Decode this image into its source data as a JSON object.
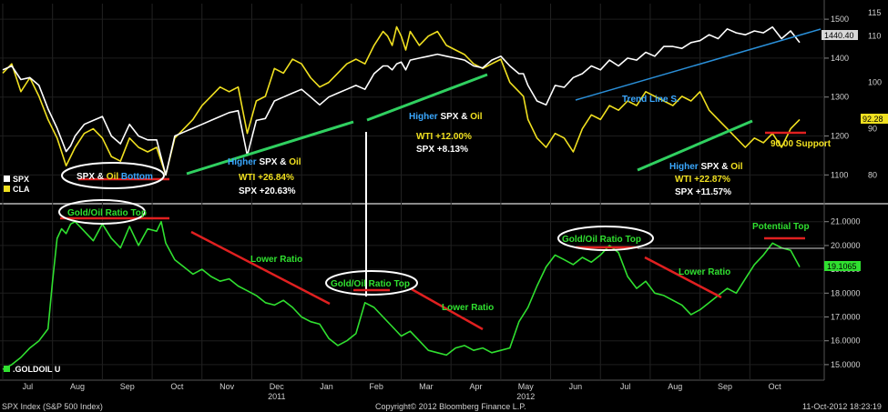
{
  "chart_data": [
    {
      "type": "line",
      "panel": "top",
      "title": "",
      "legend": [
        {
          "label": "SPX",
          "color": "#ffffff"
        },
        {
          "label": "CLA",
          "color": "#f0e020"
        }
      ],
      "left_axis": {
        "ticks": [
          "80",
          "90",
          "100",
          "110",
          "115"
        ],
        "range": [
          75,
          117
        ]
      },
      "right_axis": {
        "ticks": [
          "1100",
          "1200",
          "1300",
          "1400",
          "1500"
        ],
        "range": [
          1040,
          1540
        ]
      },
      "last_values": {
        "spx": "1440.40",
        "cla": "92.28"
      },
      "series": [
        {
          "name": "SPX",
          "color": "#ffffff",
          "axis": "right",
          "x": [
            0,
            10,
            20,
            30,
            40,
            50,
            60,
            70,
            75,
            80,
            90,
            100,
            110,
            120,
            130,
            140,
            150,
            160,
            170,
            180,
            190,
            200,
            210,
            220,
            230,
            240,
            250,
            260,
            270,
            280,
            290,
            300,
            310,
            320,
            330,
            340,
            350,
            360,
            370,
            380,
            390,
            400,
            410,
            420,
            425,
            430,
            435,
            440,
            445,
            450,
            460,
            470,
            480,
            490,
            500,
            510,
            520,
            530,
            540,
            550,
            560,
            570,
            575,
            580,
            590,
            600,
            610,
            620,
            630,
            640,
            650,
            660,
            670,
            680,
            690,
            700,
            710,
            720,
            730,
            740,
            750,
            760,
            770,
            780,
            790,
            800,
            810,
            820,
            830,
            840,
            850,
            860,
            870,
            880
          ],
          "values": [
            1370,
            1380,
            1345,
            1350,
            1330,
            1270,
            1220,
            1160,
            1175,
            1200,
            1230,
            1240,
            1250,
            1200,
            1180,
            1230,
            1200,
            1190,
            1190,
            1100,
            1200,
            1210,
            1220,
            1230,
            1240,
            1250,
            1260,
            1265,
            1150,
            1240,
            1245,
            1290,
            1300,
            1310,
            1320,
            1300,
            1280,
            1300,
            1310,
            1320,
            1330,
            1320,
            1360,
            1380,
            1380,
            1370,
            1385,
            1390,
            1370,
            1395,
            1400,
            1405,
            1410,
            1405,
            1400,
            1395,
            1380,
            1375,
            1395,
            1405,
            1380,
            1360,
            1360,
            1330,
            1290,
            1280,
            1330,
            1325,
            1350,
            1360,
            1380,
            1370,
            1395,
            1380,
            1400,
            1395,
            1415,
            1405,
            1430,
            1430,
            1425,
            1440,
            1445,
            1460,
            1450,
            1475,
            1465,
            1460,
            1470,
            1465,
            1480,
            1450,
            1470,
            1440
          ]
        },
        {
          "name": "CLA",
          "color": "#f0e020",
          "axis": "left",
          "x": [
            0,
            10,
            20,
            30,
            40,
            50,
            60,
            70,
            75,
            80,
            90,
            100,
            110,
            120,
            130,
            140,
            150,
            160,
            170,
            180,
            190,
            200,
            210,
            220,
            230,
            240,
            250,
            260,
            270,
            280,
            290,
            300,
            310,
            320,
            330,
            340,
            350,
            360,
            370,
            380,
            390,
            400,
            410,
            420,
            425,
            430,
            435,
            440,
            445,
            450,
            460,
            470,
            480,
            490,
            500,
            510,
            520,
            530,
            540,
            550,
            560,
            570,
            575,
            580,
            590,
            600,
            610,
            620,
            630,
            640,
            650,
            660,
            670,
            680,
            690,
            700,
            710,
            720,
            730,
            740,
            750,
            760,
            770,
            780,
            790,
            800,
            810,
            820,
            830,
            840,
            850,
            860,
            870,
            880
          ],
          "values": [
            102,
            104,
            98,
            101,
            97,
            92,
            88,
            82,
            84,
            86,
            89,
            90,
            88,
            84,
            83,
            88,
            86,
            85,
            86,
            80,
            88,
            90,
            92,
            95,
            97,
            99,
            98,
            99,
            89,
            96,
            97,
            103,
            102,
            105,
            104,
            101,
            99,
            100,
            102,
            104,
            105,
            104,
            108,
            111,
            110,
            108,
            112,
            110,
            107,
            111,
            108,
            110,
            111,
            108,
            107,
            106,
            104,
            103,
            104,
            105,
            100,
            98,
            97,
            92,
            88,
            86,
            89,
            88,
            85,
            90,
            93,
            92,
            95,
            94,
            96,
            95,
            98,
            97,
            96,
            95,
            97,
            96,
            98,
            94,
            92,
            90,
            88,
            86,
            88,
            87,
            89,
            86,
            90,
            92
          ]
        }
      ],
      "annotations": [
        "SPX & Oil Bottom",
        "Higher SPX & Oil",
        "WTI +26.84%",
        "SPX +20.63%",
        "Higher SPX & Oil",
        "WTI +12.00%",
        "SPX +8.13%",
        "Trend Line S.",
        "Higher SPX & Oil",
        "WTI +22.87%",
        "SPX +11.57%",
        "90.00 Support"
      ]
    },
    {
      "type": "line",
      "panel": "bottom",
      "legend": [
        {
          "label": ".GOLDOIL U",
          "color": "#30e030"
        }
      ],
      "right_axis": {
        "ticks": [
          "15.0000",
          "16.0000",
          "17.0000",
          "18.0000",
          "19.0000",
          "20.0000",
          "21.0000"
        ],
        "range": [
          14.5,
          21.6
        ]
      },
      "last_value": "19.1065",
      "series": [
        {
          "name": ".GOLDOIL U",
          "color": "#30e030",
          "x": [
            0,
            10,
            20,
            30,
            40,
            50,
            55,
            60,
            65,
            70,
            75,
            80,
            90,
            100,
            110,
            120,
            130,
            140,
            150,
            160,
            170,
            175,
            180,
            190,
            200,
            210,
            220,
            230,
            240,
            250,
            260,
            270,
            280,
            290,
            300,
            310,
            320,
            330,
            340,
            350,
            360,
            370,
            380,
            390,
            400,
            410,
            420,
            430,
            440,
            450,
            460,
            470,
            480,
            490,
            500,
            510,
            520,
            530,
            540,
            550,
            560,
            570,
            580,
            590,
            600,
            610,
            620,
            630,
            640,
            650,
            660,
            670,
            680,
            690,
            700,
            710,
            720,
            730,
            740,
            750,
            760,
            770,
            780,
            790,
            800,
            810,
            820,
            830,
            840,
            850,
            860,
            870,
            880
          ],
          "values": [
            14.8,
            15.0,
            15.3,
            15.7,
            16.0,
            16.5,
            18.5,
            20.3,
            20.7,
            20.5,
            20.9,
            21.0,
            20.6,
            20.2,
            20.9,
            20.3,
            19.9,
            20.8,
            20.0,
            20.7,
            20.6,
            21.0,
            20.1,
            19.4,
            19.1,
            18.8,
            19.0,
            18.7,
            18.5,
            18.6,
            18.3,
            18.1,
            17.9,
            17.6,
            17.5,
            17.7,
            17.4,
            17.0,
            16.8,
            16.7,
            16.1,
            15.8,
            16.0,
            16.3,
            17.6,
            17.4,
            17.0,
            16.6,
            16.2,
            16.4,
            16.0,
            15.6,
            15.5,
            15.4,
            15.7,
            15.8,
            15.6,
            15.7,
            15.5,
            15.6,
            15.7,
            16.8,
            17.4,
            18.3,
            19.1,
            19.6,
            19.4,
            19.2,
            19.5,
            19.3,
            19.6,
            20.0,
            19.7,
            18.7,
            18.2,
            18.5,
            18.0,
            17.9,
            17.7,
            17.5,
            17.1,
            17.3,
            17.6,
            17.9,
            18.2,
            18.0,
            18.6,
            19.2,
            19.6,
            20.1,
            19.9,
            19.8,
            19.1
          ]
        }
      ],
      "annotations": [
        "Gold/Oil Ratio Top",
        "Lower Ratio",
        "Gold/Oil Ratio Top",
        "Lower Ratio",
        "Gold/Oil Ratio Top",
        "Lower Ratio",
        "Potential Top"
      ]
    }
  ],
  "x_axis": {
    "months": [
      "Jul",
      "Aug",
      "Sep",
      "Oct",
      "Nov",
      "Dec",
      "Jan",
      "Feb",
      "Mar",
      "Apr",
      "May",
      "Jun",
      "Jul",
      "Aug",
      "Sep",
      "Oct"
    ],
    "years": [
      "2011",
      "2012"
    ]
  },
  "footer": {
    "left": "SPX Index (S&P 500 Index)",
    "center": "Copyright© 2012 Bloomberg Finance L.P.",
    "right": "11-Oct-2012 18:23:19"
  },
  "colors": {
    "background": "#000000",
    "spx": "#ffffff",
    "cla": "#f0e020",
    "ratio": "#30e030",
    "trend_green": "#30d060",
    "trend_blue": "#2a8fd8",
    "marker_red": "#e02020",
    "highlight_blue": "#3aa8ff"
  }
}
